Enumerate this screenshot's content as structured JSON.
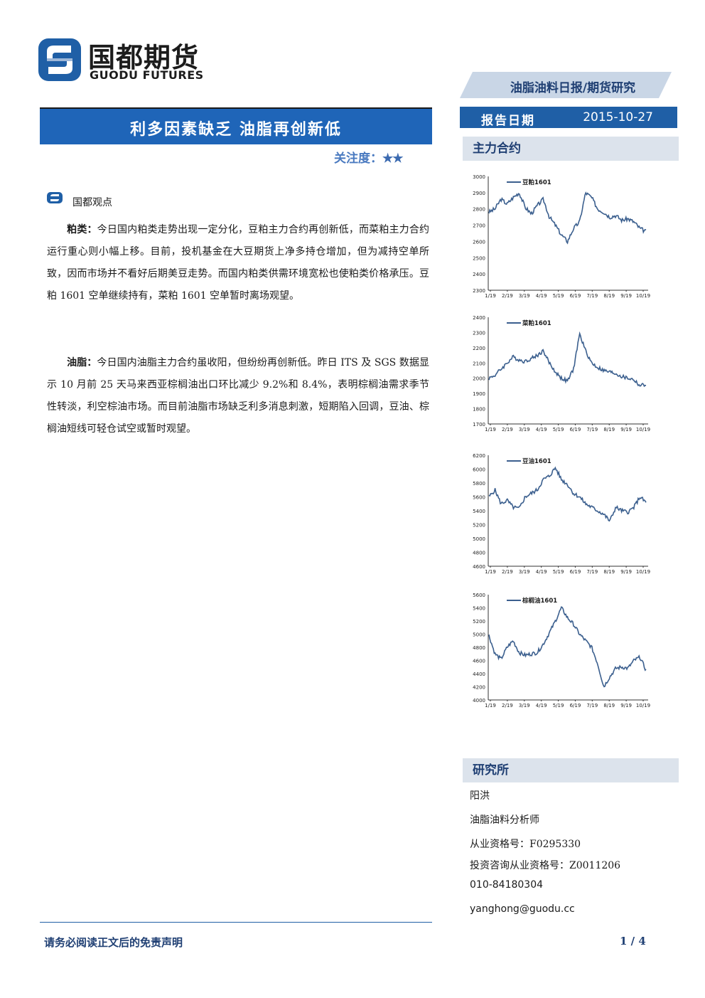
{
  "brand": {
    "name_cn": "国都期货",
    "name_en": "GUODU FUTURES"
  },
  "header": {
    "report_type": "油脂油料日报/期货研究",
    "date_label": "报告日期",
    "date_value": "2015-10-27"
  },
  "title": {
    "main": "利多因素缺乏 油脂再创新低",
    "attention_label": "关注度：",
    "attention_stars": "★★"
  },
  "view": {
    "heading": "国都观点",
    "meal_label": "粕类：",
    "meal_text": "今日国内粕类走势出现一定分化，豆粕主力合约再创新低，而菜粕主力合约运行重心则小幅上移。目前，投机基金在大豆期货上净多持仓增加，但为减持空单所致，因而市场并不看好后期美豆走势。而国内粕类供需环境宽松也使粕类价格承压。豆粕 1601 空单继续持有，菜粕 1601 空单暂时离场观望。",
    "oil_label": "油脂：",
    "oil_text": "今日国内油脂主力合约虽收阳，但纷纷再创新低。昨日 ITS 及 SGS 数据显示 10 月前 25 天马来西亚棕榈油出口环比减少 9.2%和 8.4%，表明棕榈油需求季节性转淡，利空棕油市场。而目前油脂市场缺乏利多消息刺激，短期陷入回调，豆油、棕榈油短线可轻仓试空或暂时观望。"
  },
  "sidebar": {
    "contracts_heading": "主力合约",
    "institute_heading": "研究所",
    "analyst_name": "阳洪",
    "analyst_title": "油脂油料分析师",
    "license_label": "从业资格号：F0295330",
    "consult_label": "投资咨询从业资格号：Z0011206",
    "phone": "010-84180304",
    "email": "yanghong@guodu.cc"
  },
  "footer": {
    "disclaimer": "请务必阅读正文后的免责声明",
    "page": "1 / 4"
  },
  "colors": {
    "primary": "#1f65b8",
    "dark_blue": "#1f3f73",
    "series": "#3b5f8e"
  },
  "chart_data": [
    {
      "type": "line",
      "title": "",
      "series": [
        {
          "name": "豆粕1601",
          "y": [
            2780,
            2800,
            2860,
            2830,
            2870,
            2900,
            2810,
            2770,
            2820,
            2860,
            2750,
            2700,
            2640,
            2600,
            2680,
            2720,
            2900,
            2870,
            2800,
            2780,
            2750,
            2760,
            2730,
            2740,
            2720,
            2680,
            2660
          ]
        }
      ],
      "x_ticks": [
        "1/19",
        "2/19",
        "3/19",
        "4/19",
        "5/19",
        "6/19",
        "7/19",
        "8/19",
        "9/19",
        "10/19"
      ],
      "y_ticks": [
        "3000",
        "2900",
        "2800",
        "2700",
        "2600",
        "2500",
        "2400",
        "2300"
      ],
      "ylim": [
        2300,
        3000
      ]
    },
    {
      "type": "line",
      "title": "",
      "series": [
        {
          "name": "菜粕1601",
          "y": [
            2000,
            2020,
            2060,
            2100,
            2140,
            2120,
            2110,
            2130,
            2150,
            2180,
            2100,
            2040,
            2000,
            1980,
            2060,
            2290,
            2180,
            2100,
            2070,
            2050,
            2040,
            2030,
            2010,
            2000,
            1990,
            1950,
            1960
          ]
        }
      ],
      "x_ticks": [
        "1/19",
        "2/19",
        "3/19",
        "4/19",
        "5/19",
        "6/19",
        "7/19",
        "8/19",
        "9/19",
        "10/19"
      ],
      "y_ticks": [
        "2400",
        "2300",
        "2200",
        "2100",
        "2000",
        "1900",
        "1800",
        "1700"
      ],
      "ylim": [
        1700,
        2400
      ]
    },
    {
      "type": "line",
      "title": "",
      "series": [
        {
          "name": "豆油1601",
          "y": [
            5600,
            5700,
            5500,
            5550,
            5450,
            5430,
            5600,
            5650,
            5700,
            5850,
            5900,
            6020,
            5850,
            5780,
            5650,
            5600,
            5500,
            5450,
            5400,
            5350,
            5250,
            5450,
            5400,
            5380,
            5450,
            5600,
            5520
          ]
        }
      ],
      "x_ticks": [
        "1/19",
        "2/19",
        "3/19",
        "4/19",
        "5/19",
        "6/19",
        "7/19",
        "8/19",
        "9/19",
        "10/19"
      ],
      "y_ticks": [
        "6200",
        "6000",
        "5800",
        "5600",
        "5400",
        "5200",
        "5000",
        "4800",
        "4600"
      ],
      "ylim": [
        4600,
        6200
      ]
    },
    {
      "type": "line",
      "title": "",
      "series": [
        {
          "name": "棕榈油1601",
          "y": [
            4980,
            4700,
            4620,
            4800,
            4900,
            4720,
            4680,
            4700,
            4720,
            4850,
            5020,
            5200,
            5400,
            5250,
            5150,
            5000,
            4900,
            4800,
            4550,
            4200,
            4350,
            4480,
            4500,
            4480,
            4600,
            4650,
            4450
          ]
        }
      ],
      "x_ticks": [
        "1/19",
        "2/19",
        "3/19",
        "4/19",
        "5/19",
        "6/19",
        "7/19",
        "8/19",
        "9/19",
        "10/19"
      ],
      "y_ticks": [
        "5600",
        "5400",
        "5200",
        "5000",
        "4800",
        "4600",
        "4400",
        "4200",
        "4000"
      ],
      "ylim": [
        4000,
        5600
      ]
    }
  ]
}
